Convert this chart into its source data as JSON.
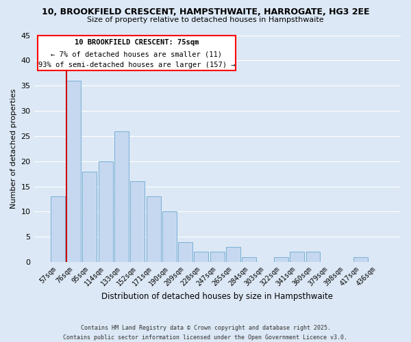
{
  "title": "10, BROOKFIELD CRESCENT, HAMPSTHWAITE, HARROGATE, HG3 2EE",
  "subtitle": "Size of property relative to detached houses in Hampsthwaite",
  "xlabel": "Distribution of detached houses by size in Hampsthwaite",
  "ylabel": "Number of detached properties",
  "categories": [
    "57sqm",
    "76sqm",
    "95sqm",
    "114sqm",
    "133sqm",
    "152sqm",
    "171sqm",
    "190sqm",
    "209sqm",
    "228sqm",
    "247sqm",
    "265sqm",
    "284sqm",
    "303sqm",
    "322sqm",
    "341sqm",
    "360sqm",
    "379sqm",
    "398sqm",
    "417sqm",
    "436sqm"
  ],
  "values": [
    13,
    36,
    18,
    20,
    26,
    16,
    13,
    10,
    4,
    2,
    2,
    3,
    1,
    0,
    1,
    2,
    2,
    0,
    0,
    1,
    0
  ],
  "bar_color": "#c5d8f0",
  "bar_edge_color": "#7aafd4",
  "background_color": "#dce8f5",
  "grid_color": "#ffffff",
  "marker_color": "#cc0000",
  "annotation_title": "10 BROOKFIELD CRESCENT: 75sqm",
  "annotation_line1": "← 7% of detached houses are smaller (11)",
  "annotation_line2": "93% of semi-detached houses are larger (157) →",
  "ylim": [
    0,
    45
  ],
  "yticks": [
    0,
    5,
    10,
    15,
    20,
    25,
    30,
    35,
    40,
    45
  ],
  "footer1": "Contains HM Land Registry data © Crown copyright and database right 2025.",
  "footer2": "Contains public sector information licensed under the Open Government Licence v3.0."
}
